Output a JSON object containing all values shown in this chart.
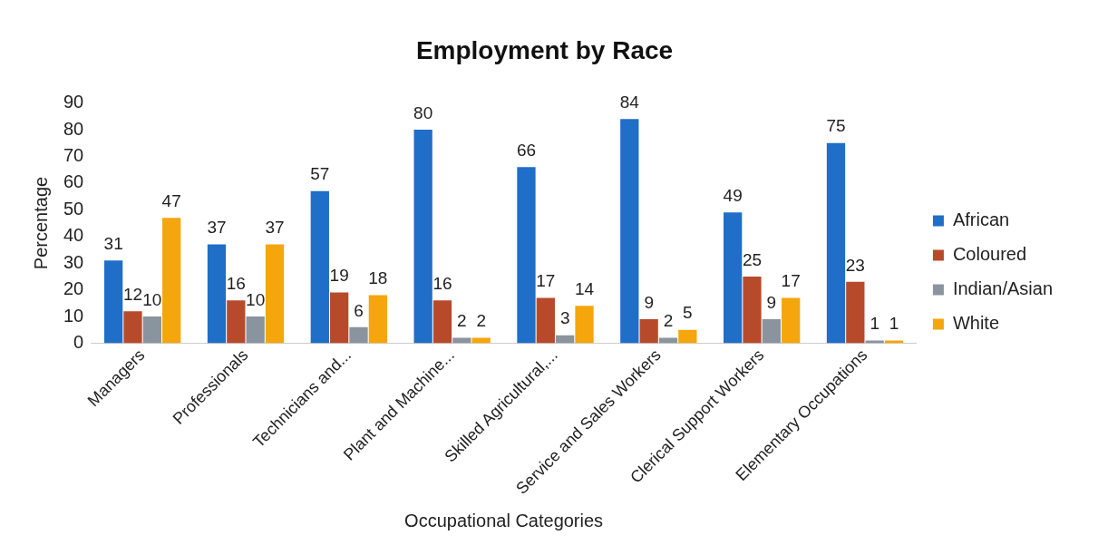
{
  "chart_data": {
    "type": "bar",
    "title": "Employment by Race",
    "xlabel": "Occupational Categories",
    "ylabel": "Percentage",
    "categories": [
      "Managers",
      "Professionals",
      "Technicians and...",
      "Plant and Machine...",
      "Skilled Agricultural,...",
      "Service and Sales Workers",
      "Clerical Support Workers",
      "Elementary Occupations"
    ],
    "series": [
      {
        "name": "African",
        "color": "#1f6ec8",
        "values": [
          31,
          37,
          57,
          80,
          66,
          84,
          49,
          75
        ]
      },
      {
        "name": "Coloured",
        "color": "#b84a2c",
        "values": [
          12,
          16,
          19,
          16,
          17,
          9,
          25,
          23
        ]
      },
      {
        "name": "Indian/Asian",
        "color": "#8a949e",
        "values": [
          10,
          10,
          6,
          2,
          3,
          2,
          9,
          1
        ]
      },
      {
        "name": "White",
        "color": "#f4a60c",
        "values": [
          47,
          37,
          18,
          2,
          14,
          5,
          17,
          1
        ]
      }
    ],
    "ylim": [
      0,
      90
    ],
    "yticks": [
      0,
      10,
      20,
      30,
      40,
      50,
      60,
      70,
      80,
      90
    ],
    "grid": false,
    "legend": "right",
    "data_labels": true
  }
}
